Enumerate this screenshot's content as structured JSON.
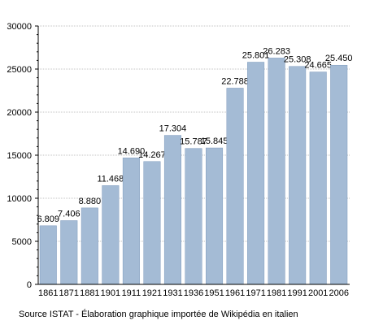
{
  "chart_data": {
    "type": "bar",
    "categories": [
      "1861",
      "1871",
      "1881",
      "1901",
      "1911",
      "1921",
      "1931",
      "1936",
      "1951",
      "1961",
      "1971",
      "1981",
      "1991",
      "2001",
      "2006"
    ],
    "values": [
      6809,
      7406,
      8880,
      11468,
      14690,
      14267,
      17304,
      15787,
      15845,
      22788,
      25801,
      26283,
      25308,
      24665,
      25450
    ],
    "value_labels": [
      "6.809",
      "7.406",
      "8.880",
      "11.468",
      "14.690",
      "14.267",
      "17.304",
      "15.787",
      "15.845",
      "22.788",
      "25.801",
      "26.283",
      "25.308",
      "24.665",
      "25.450"
    ],
    "ylim": [
      0,
      30000
    ],
    "yticks": [
      "0",
      "5000",
      "10000",
      "15000",
      "20000",
      "25000",
      "30000"
    ],
    "ytick_values": [
      0,
      5000,
      10000,
      15000,
      20000,
      25000,
      30000
    ],
    "grid": true,
    "colors": {
      "bar": "#a4bbd5",
      "bar_edge": "#7f9bbd",
      "grid": "#888888",
      "axis": "#000000"
    }
  },
  "source_note": "Source ISTAT - Élaboration graphique importée de Wikipédia en italien"
}
